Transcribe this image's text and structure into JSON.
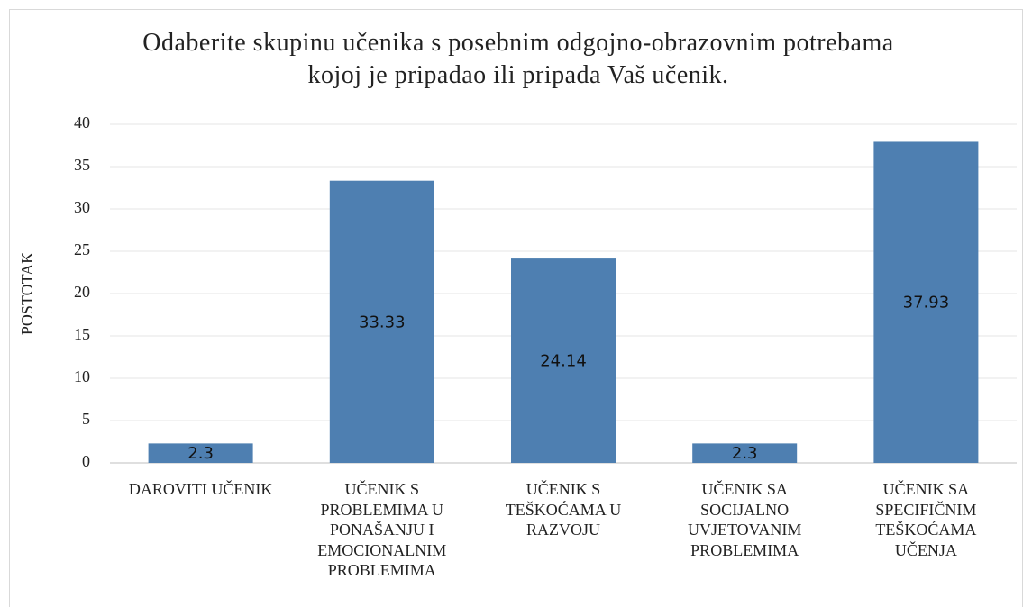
{
  "chart_data": {
    "type": "bar",
    "title": "Odaberite skupinu učenika s posebnim odgojno-obrazovnim potrebama kojoj je pripadao ili pripada Vaš učenik.",
    "ylabel": "POSTOTAK",
    "categories": [
      "DAROVITI UČENIK",
      "UČENIK S PROBLEMIMA U PONAŠANJU I EMOCIONALNIM PROBLEMIMA",
      "UČENIK S TEŠKOĆAMA U RAZVOJU",
      "UČENIK SA SOCIJALNO UVJETOVANIM PROBLEMIMA",
      "UČENIK SA SPECIFIČNIM TEŠKOĆAMA UČENJA"
    ],
    "values": [
      2.3,
      33.33,
      24.14,
      2.3,
      37.93
    ],
    "color": "#4e7fb1",
    "ylim": [
      0,
      40
    ],
    "yticks": [
      0,
      5,
      10,
      15,
      20,
      25,
      30,
      35,
      40
    ],
    "grid": true
  }
}
